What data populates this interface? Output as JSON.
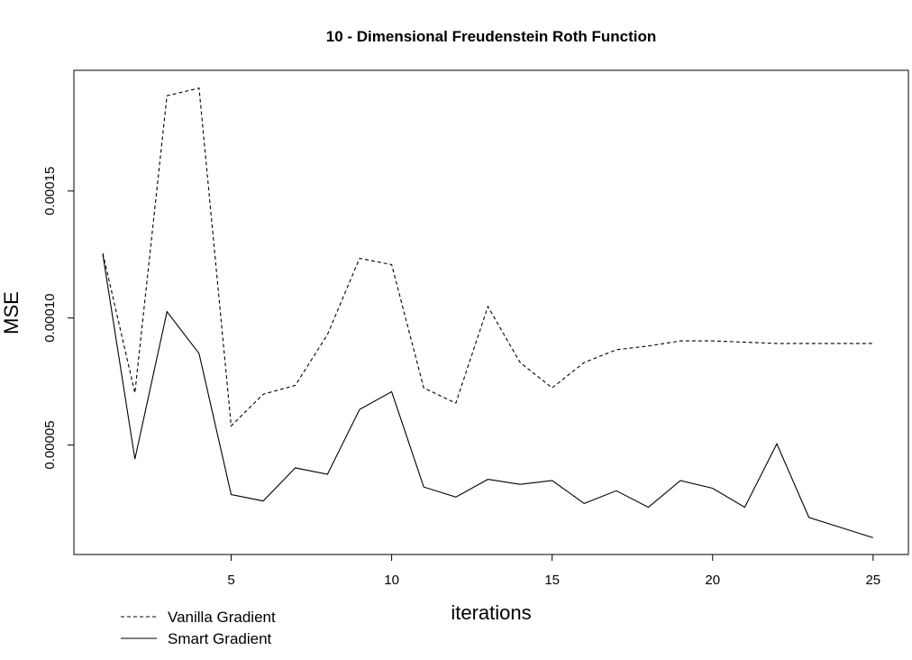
{
  "chart_data": {
    "type": "line",
    "title": "10 - Dimensional Freudenstein Roth Function",
    "xlabel": "iterations",
    "ylabel": "MSE",
    "x": [
      1,
      2,
      3,
      4,
      5,
      6,
      7,
      8,
      9,
      10,
      11,
      12,
      13,
      14,
      15,
      16,
      17,
      18,
      19,
      20,
      21,
      22,
      23,
      24,
      25
    ],
    "xlim": [
      0.1,
      26.1
    ],
    "ylim": [
      6.9e-06,
      0.0001975
    ],
    "x_ticks": [
      5,
      10,
      15,
      20,
      25
    ],
    "x_tick_labels": [
      "5",
      "10",
      "15",
      "20",
      "25"
    ],
    "y_ticks": [
      5e-05,
      0.0001,
      0.00015
    ],
    "y_tick_labels": [
      "0.00005",
      "0.00010",
      "0.00015"
    ],
    "grid": false,
    "legend_position": "bottom-left",
    "series": [
      {
        "name": "Vanilla Gradient",
        "line_style": "dashed",
        "color": "#000000",
        "values": [
          0.0001255,
          7.05e-05,
          0.0001875,
          0.0001905,
          5.75e-05,
          7e-05,
          7.35e-05,
          9.35e-05,
          0.0001235,
          0.000121,
          7.25e-05,
          6.65e-05,
          0.0001045,
          8.25e-05,
          7.25e-05,
          8.25e-05,
          8.75e-05,
          8.9e-05,
          9.1e-05,
          9.1e-05,
          9.05e-05,
          9e-05,
          9e-05,
          9e-05,
          9e-05
        ]
      },
      {
        "name": "Smart Gradient",
        "line_style": "solid",
        "color": "#000000",
        "values": [
          0.000125,
          4.45e-05,
          0.0001025,
          8.6e-05,
          3.05e-05,
          2.8e-05,
          4.1e-05,
          3.85e-05,
          6.4e-05,
          7.1e-05,
          3.35e-05,
          2.95e-05,
          3.65e-05,
          3.45e-05,
          3.6e-05,
          2.7e-05,
          3.2e-05,
          2.55e-05,
          3.6e-05,
          3.3e-05,
          2.55e-05,
          5.05e-05,
          2.15e-05,
          1.75e-05,
          1.35e-05
        ]
      }
    ]
  }
}
